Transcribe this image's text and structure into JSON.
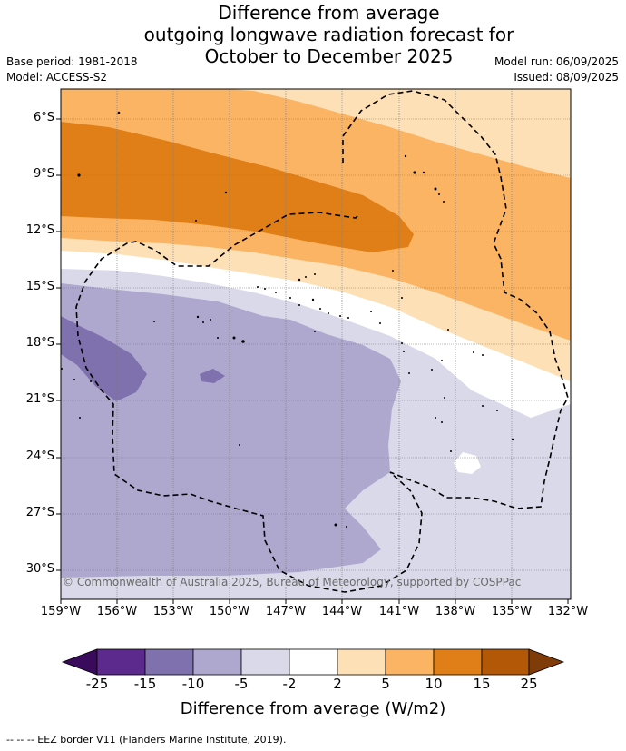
{
  "title_lines": [
    "Difference from average",
    "outgoing longwave radiation forecast for",
    "October to December 2025"
  ],
  "base_period": "Base period: 1981-2018",
  "model": "Model: ACCESS-S2",
  "model_run": "Model run: 06/09/2025",
  "issued": "Issued: 08/09/2025",
  "x_ticks": [
    "159°W",
    "156°W",
    "153°W",
    "150°W",
    "147°W",
    "144°W",
    "141°W",
    "138°W",
    "135°W",
    "132°W"
  ],
  "y_ticks": [
    "6°S",
    "9°S",
    "12°S",
    "15°S",
    "18°S",
    "21°S",
    "24°S",
    "27°S",
    "30°S"
  ],
  "copyright": "© Commonwealth of Australia 2025, Bureau of Meteorology, supported by COSPPac",
  "colorbar": {
    "labels": [
      "-25",
      "-15",
      "-10",
      "-5",
      "-2",
      "2",
      "5",
      "10",
      "15",
      "25"
    ],
    "colors": [
      "#3a0a5c",
      "#5b2a8c",
      "#7f70ae",
      "#aea8cf",
      "#d9d9ea",
      "#ffffff",
      "#fde0b6",
      "#fbb463",
      "#e07f17",
      "#b35806",
      "#7f3b08"
    ],
    "title": "Difference from average (W/m2)"
  },
  "eez_note": "--  --  -- EEZ border V11 (Flanders Marine Institute, 2019)."
}
